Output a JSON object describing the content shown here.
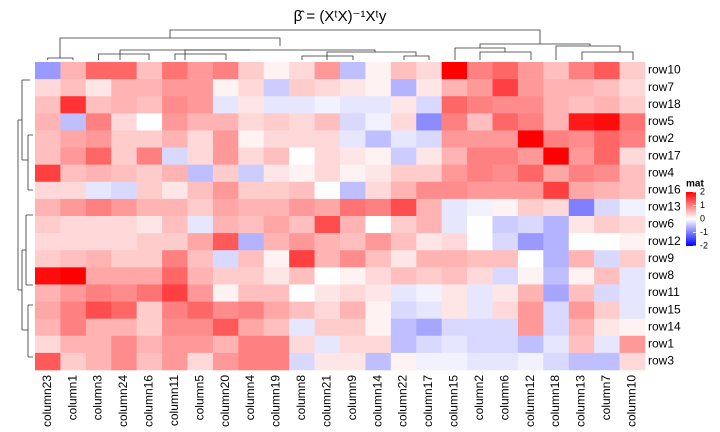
{
  "chart_data": {
    "type": "heatmap",
    "title": "β̂ = (XᵗX)⁻¹Xᵗy",
    "rows": [
      "row10",
      "row7",
      "row18",
      "row5",
      "row2",
      "row17",
      "row4",
      "row16",
      "row13",
      "row6",
      "row12",
      "row9",
      "row8",
      "row11",
      "row15",
      "row14",
      "row1",
      "row3"
    ],
    "columns": [
      "column23",
      "column1",
      "column3",
      "column24",
      "column16",
      "column11",
      "column5",
      "column20",
      "column4",
      "column19",
      "column8",
      "column21",
      "column9",
      "column14",
      "column22",
      "column17",
      "column15",
      "column2",
      "column6",
      "column12",
      "column18",
      "column13",
      "column7",
      "column10"
    ],
    "values": [
      [
        -0.8,
        0.6,
        1.2,
        1.2,
        0.5,
        1.1,
        0.8,
        1.0,
        0.4,
        0.1,
        0.3,
        0.8,
        -0.5,
        0.1,
        0.5,
        0.3,
        2.0,
        1.0,
        1.2,
        0.8,
        0.5,
        1.0,
        1.3,
        0.4
      ],
      [
        0.3,
        0.5,
        0.2,
        0.6,
        0.6,
        0.8,
        0.8,
        0.1,
        0.3,
        -0.4,
        0.4,
        0.3,
        0.2,
        0.1,
        -0.6,
        0.2,
        0.6,
        0.8,
        1.5,
        0.8,
        0.6,
        0.6,
        0.5,
        0.3
      ],
      [
        0.5,
        1.6,
        0.5,
        0.6,
        0.5,
        0.9,
        0.8,
        -0.2,
        0.2,
        -0.2,
        -0.2,
        -0.1,
        -0.2,
        -0.2,
        0.2,
        -0.3,
        1.2,
        1.0,
        0.9,
        0.9,
        0.6,
        0.5,
        0.6,
        0.4
      ],
      [
        0.6,
        -0.5,
        1.0,
        0.3,
        0.0,
        0.8,
        0.6,
        0.6,
        0.3,
        0.4,
        0.3,
        0.5,
        -0.3,
        -0.1,
        0.3,
        -0.9,
        1.0,
        0.5,
        1.2,
        1.0,
        0.6,
        1.8,
        1.9,
        1.1
      ],
      [
        0.5,
        0.7,
        0.8,
        0.4,
        0.4,
        0.6,
        0.3,
        0.8,
        0.1,
        0.3,
        0.3,
        0.3,
        -0.2,
        -0.5,
        -0.2,
        -0.3,
        0.8,
        0.8,
        0.8,
        2.0,
        1.0,
        0.9,
        1.2,
        1.0
      ],
      [
        0.5,
        0.8,
        1.2,
        0.4,
        1.0,
        -0.3,
        0.3,
        0.8,
        0.3,
        0.5,
        0.0,
        0.3,
        0.2,
        0.1,
        -0.4,
        0.2,
        0.6,
        1.0,
        1.0,
        0.8,
        2.0,
        0.8,
        1.2,
        0.3
      ],
      [
        1.5,
        0.5,
        0.6,
        0.5,
        0.4,
        0.6,
        -0.5,
        0.4,
        -0.4,
        0.2,
        0.1,
        0.3,
        0.1,
        0.2,
        0.4,
        0.4,
        0.8,
        1.0,
        0.9,
        1.2,
        0.7,
        1.0,
        0.9,
        0.5
      ],
      [
        0.3,
        0.3,
        -0.2,
        -0.3,
        0.4,
        0.2,
        0.5,
        0.8,
        0.4,
        0.4,
        0.5,
        0.0,
        -0.5,
        0.3,
        0.6,
        0.9,
        0.9,
        0.8,
        0.8,
        0.8,
        1.5,
        0.7,
        0.6,
        0.5
      ],
      [
        0.6,
        0.8,
        1.0,
        0.8,
        0.6,
        0.6,
        0.4,
        0.7,
        0.6,
        0.6,
        0.8,
        0.7,
        1.1,
        1.0,
        1.4,
        0.6,
        -0.2,
        -0.1,
        0.1,
        0.4,
        0.3,
        -1.0,
        -0.3,
        -0.1
      ],
      [
        0.4,
        0.3,
        0.3,
        0.3,
        0.2,
        0.5,
        -0.2,
        0.6,
        0.5,
        0.7,
        0.5,
        1.4,
        0.6,
        0.0,
        0.4,
        0.6,
        -0.2,
        0.0,
        -0.4,
        -0.3,
        -0.6,
        0.2,
        0.4,
        0.3
      ],
      [
        0.3,
        0.3,
        0.3,
        0.3,
        0.4,
        0.4,
        0.7,
        1.3,
        -0.6,
        0.6,
        0.8,
        0.6,
        0.5,
        0.8,
        0.5,
        0.2,
        0.3,
        0.0,
        -0.3,
        -0.8,
        -0.6,
        0.0,
        0.0,
        0.1
      ],
      [
        0.4,
        0.5,
        0.6,
        0.4,
        0.4,
        1.0,
        0.5,
        -0.3,
        0.5,
        0.1,
        1.5,
        0.6,
        0.9,
        0.5,
        0.2,
        0.6,
        0.6,
        0.5,
        0.5,
        0.0,
        -0.6,
        0.6,
        -0.3,
        0.4
      ],
      [
        1.9,
        2.0,
        0.7,
        0.7,
        0.7,
        1.2,
        0.6,
        0.4,
        0.4,
        0.2,
        0.5,
        0.0,
        0.1,
        0.3,
        0.5,
        0.4,
        0.5,
        0.3,
        -0.3,
        0.1,
        -0.5,
        0.1,
        0.5,
        -0.2
      ],
      [
        0.6,
        0.8,
        1.0,
        0.9,
        1.1,
        1.5,
        0.8,
        0.1,
        0.5,
        0.5,
        0.0,
        0.2,
        0.3,
        0.2,
        -0.2,
        -0.1,
        0.2,
        -0.2,
        0.2,
        0.6,
        -0.7,
        0.5,
        -0.3,
        -0.2
      ],
      [
        0.7,
        1.0,
        1.4,
        1.2,
        0.4,
        1.0,
        1.2,
        0.9,
        1.0,
        0.7,
        0.5,
        0.3,
        0.6,
        0.1,
        -0.3,
        -0.2,
        0.2,
        -0.2,
        0.3,
        0.8,
        -0.3,
        0.8,
        0.4,
        -0.2
      ],
      [
        0.6,
        1.0,
        0.6,
        0.6,
        0.4,
        0.9,
        0.9,
        1.3,
        0.7,
        0.5,
        -0.2,
        0.4,
        0.4,
        0.1,
        -0.5,
        -0.7,
        -0.3,
        -0.3,
        -0.3,
        0.8,
        -0.3,
        0.6,
        0.2,
        0.1
      ],
      [
        0.3,
        0.6,
        0.6,
        0.9,
        0.6,
        0.8,
        0.8,
        0.6,
        1.0,
        1.0,
        0.3,
        -0.2,
        0.3,
        0.3,
        -0.5,
        -0.3,
        -0.2,
        -0.3,
        -0.3,
        -0.5,
        -0.2,
        0.5,
        -0.2,
        0.8
      ],
      [
        1.3,
        0.4,
        0.6,
        0.9,
        0.5,
        0.8,
        0.3,
        0.8,
        1.0,
        1.0,
        -0.3,
        0.2,
        0.2,
        -0.5,
        0.1,
        -0.1,
        -0.1,
        -0.2,
        -0.2,
        -0.1,
        -0.3,
        -0.5,
        -0.5,
        0.3
      ]
    ],
    "zlim": [
      -2,
      2
    ],
    "colors": {
      "low": "#0000ff",
      "mid": "#ffffff",
      "high": "#ff0000"
    },
    "legend": {
      "title": "mat",
      "ticks": [
        2,
        1,
        0,
        -1,
        -2
      ]
    }
  }
}
